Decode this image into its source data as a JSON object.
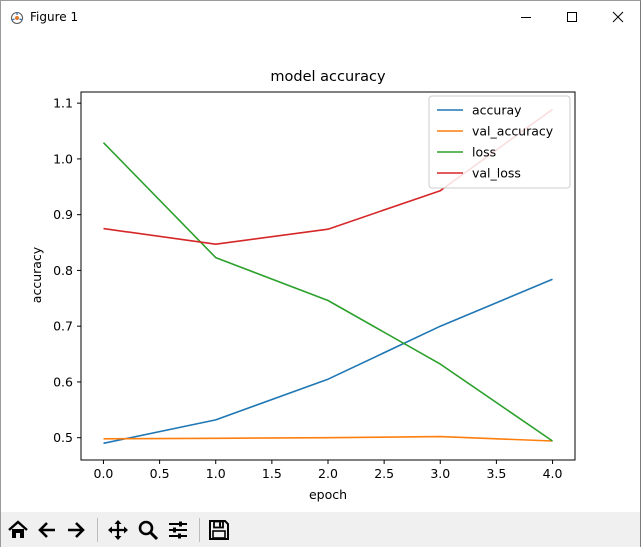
{
  "window": {
    "title": "Figure 1",
    "icons": [
      "figure-icon",
      "minimize-icon",
      "maximize-icon",
      "close-icon"
    ]
  },
  "toolbar": {
    "buttons": [
      "home-icon",
      "back-arrow-icon",
      "forward-arrow-icon",
      "pan-icon",
      "zoom-icon",
      "configure-subplots-icon",
      "save-icon"
    ]
  },
  "chart_data": {
    "type": "line",
    "title": "model accuracy",
    "xlabel": "epoch",
    "ylabel": "accuracy",
    "x": [
      0,
      1,
      2,
      3,
      4
    ],
    "xlim": [
      -0.2,
      4.2
    ],
    "ylim": [
      0.46,
      1.12
    ],
    "xticks": [
      0.0,
      0.5,
      1.0,
      1.5,
      2.0,
      2.5,
      3.0,
      3.5,
      4.0
    ],
    "xtick_labels": [
      "0.0",
      "0.5",
      "1.0",
      "1.5",
      "2.0",
      "2.5",
      "3.0",
      "3.5",
      "4.0"
    ],
    "yticks": [
      0.5,
      0.6,
      0.7,
      0.8,
      0.9,
      1.0,
      1.1
    ],
    "ytick_labels": [
      "0.5",
      "0.6",
      "0.7",
      "0.8",
      "0.9",
      "1.0",
      "1.1"
    ],
    "grid": false,
    "legend_position": "top-right",
    "series": [
      {
        "name": "accuray",
        "color": "#1f77b4",
        "values": [
          0.49,
          0.532,
          0.605,
          0.7,
          0.784
        ]
      },
      {
        "name": "val_accuracy",
        "color": "#ff7f0e",
        "values": [
          0.498,
          0.499,
          0.5,
          0.502,
          0.494
        ]
      },
      {
        "name": "loss",
        "color": "#2ca02c",
        "values": [
          1.029,
          0.823,
          0.746,
          0.632,
          0.494
        ]
      },
      {
        "name": "val_loss",
        "color": "#d62728",
        "values": [
          0.875,
          0.847,
          0.874,
          0.943,
          1.089
        ]
      }
    ]
  }
}
